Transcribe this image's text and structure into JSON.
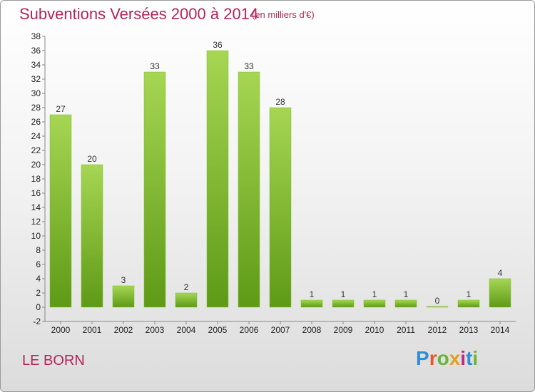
{
  "header": {
    "title": "Subventions Versées 2000 à 2014",
    "subtitle": "(en milliers d'€)"
  },
  "footer": {
    "commune": "LE BORN",
    "logo_text": "Proxiti"
  },
  "colors": {
    "title": "#b5245a",
    "bar_top": "#a6d653",
    "bar_bottom": "#5e9a16"
  },
  "chart_data": {
    "type": "bar",
    "title": "Subventions Versées 2000 à 2014",
    "subtitle": "(en milliers d'€)",
    "xlabel": "",
    "ylabel": "",
    "categories": [
      "2000",
      "2001",
      "2002",
      "2003",
      "2004",
      "2005",
      "2006",
      "2007",
      "2008",
      "2009",
      "2010",
      "2011",
      "2012",
      "2013",
      "2014"
    ],
    "values": [
      27,
      20,
      3,
      33,
      2,
      36,
      33,
      28,
      1,
      1,
      1,
      1,
      0,
      1,
      4
    ],
    "ylim": [
      -2,
      38
    ],
    "yticks": [
      -2,
      0,
      2,
      4,
      6,
      8,
      10,
      12,
      14,
      16,
      18,
      20,
      22,
      24,
      26,
      28,
      30,
      32,
      34,
      36,
      38
    ],
    "grid": false,
    "legend": "none"
  }
}
